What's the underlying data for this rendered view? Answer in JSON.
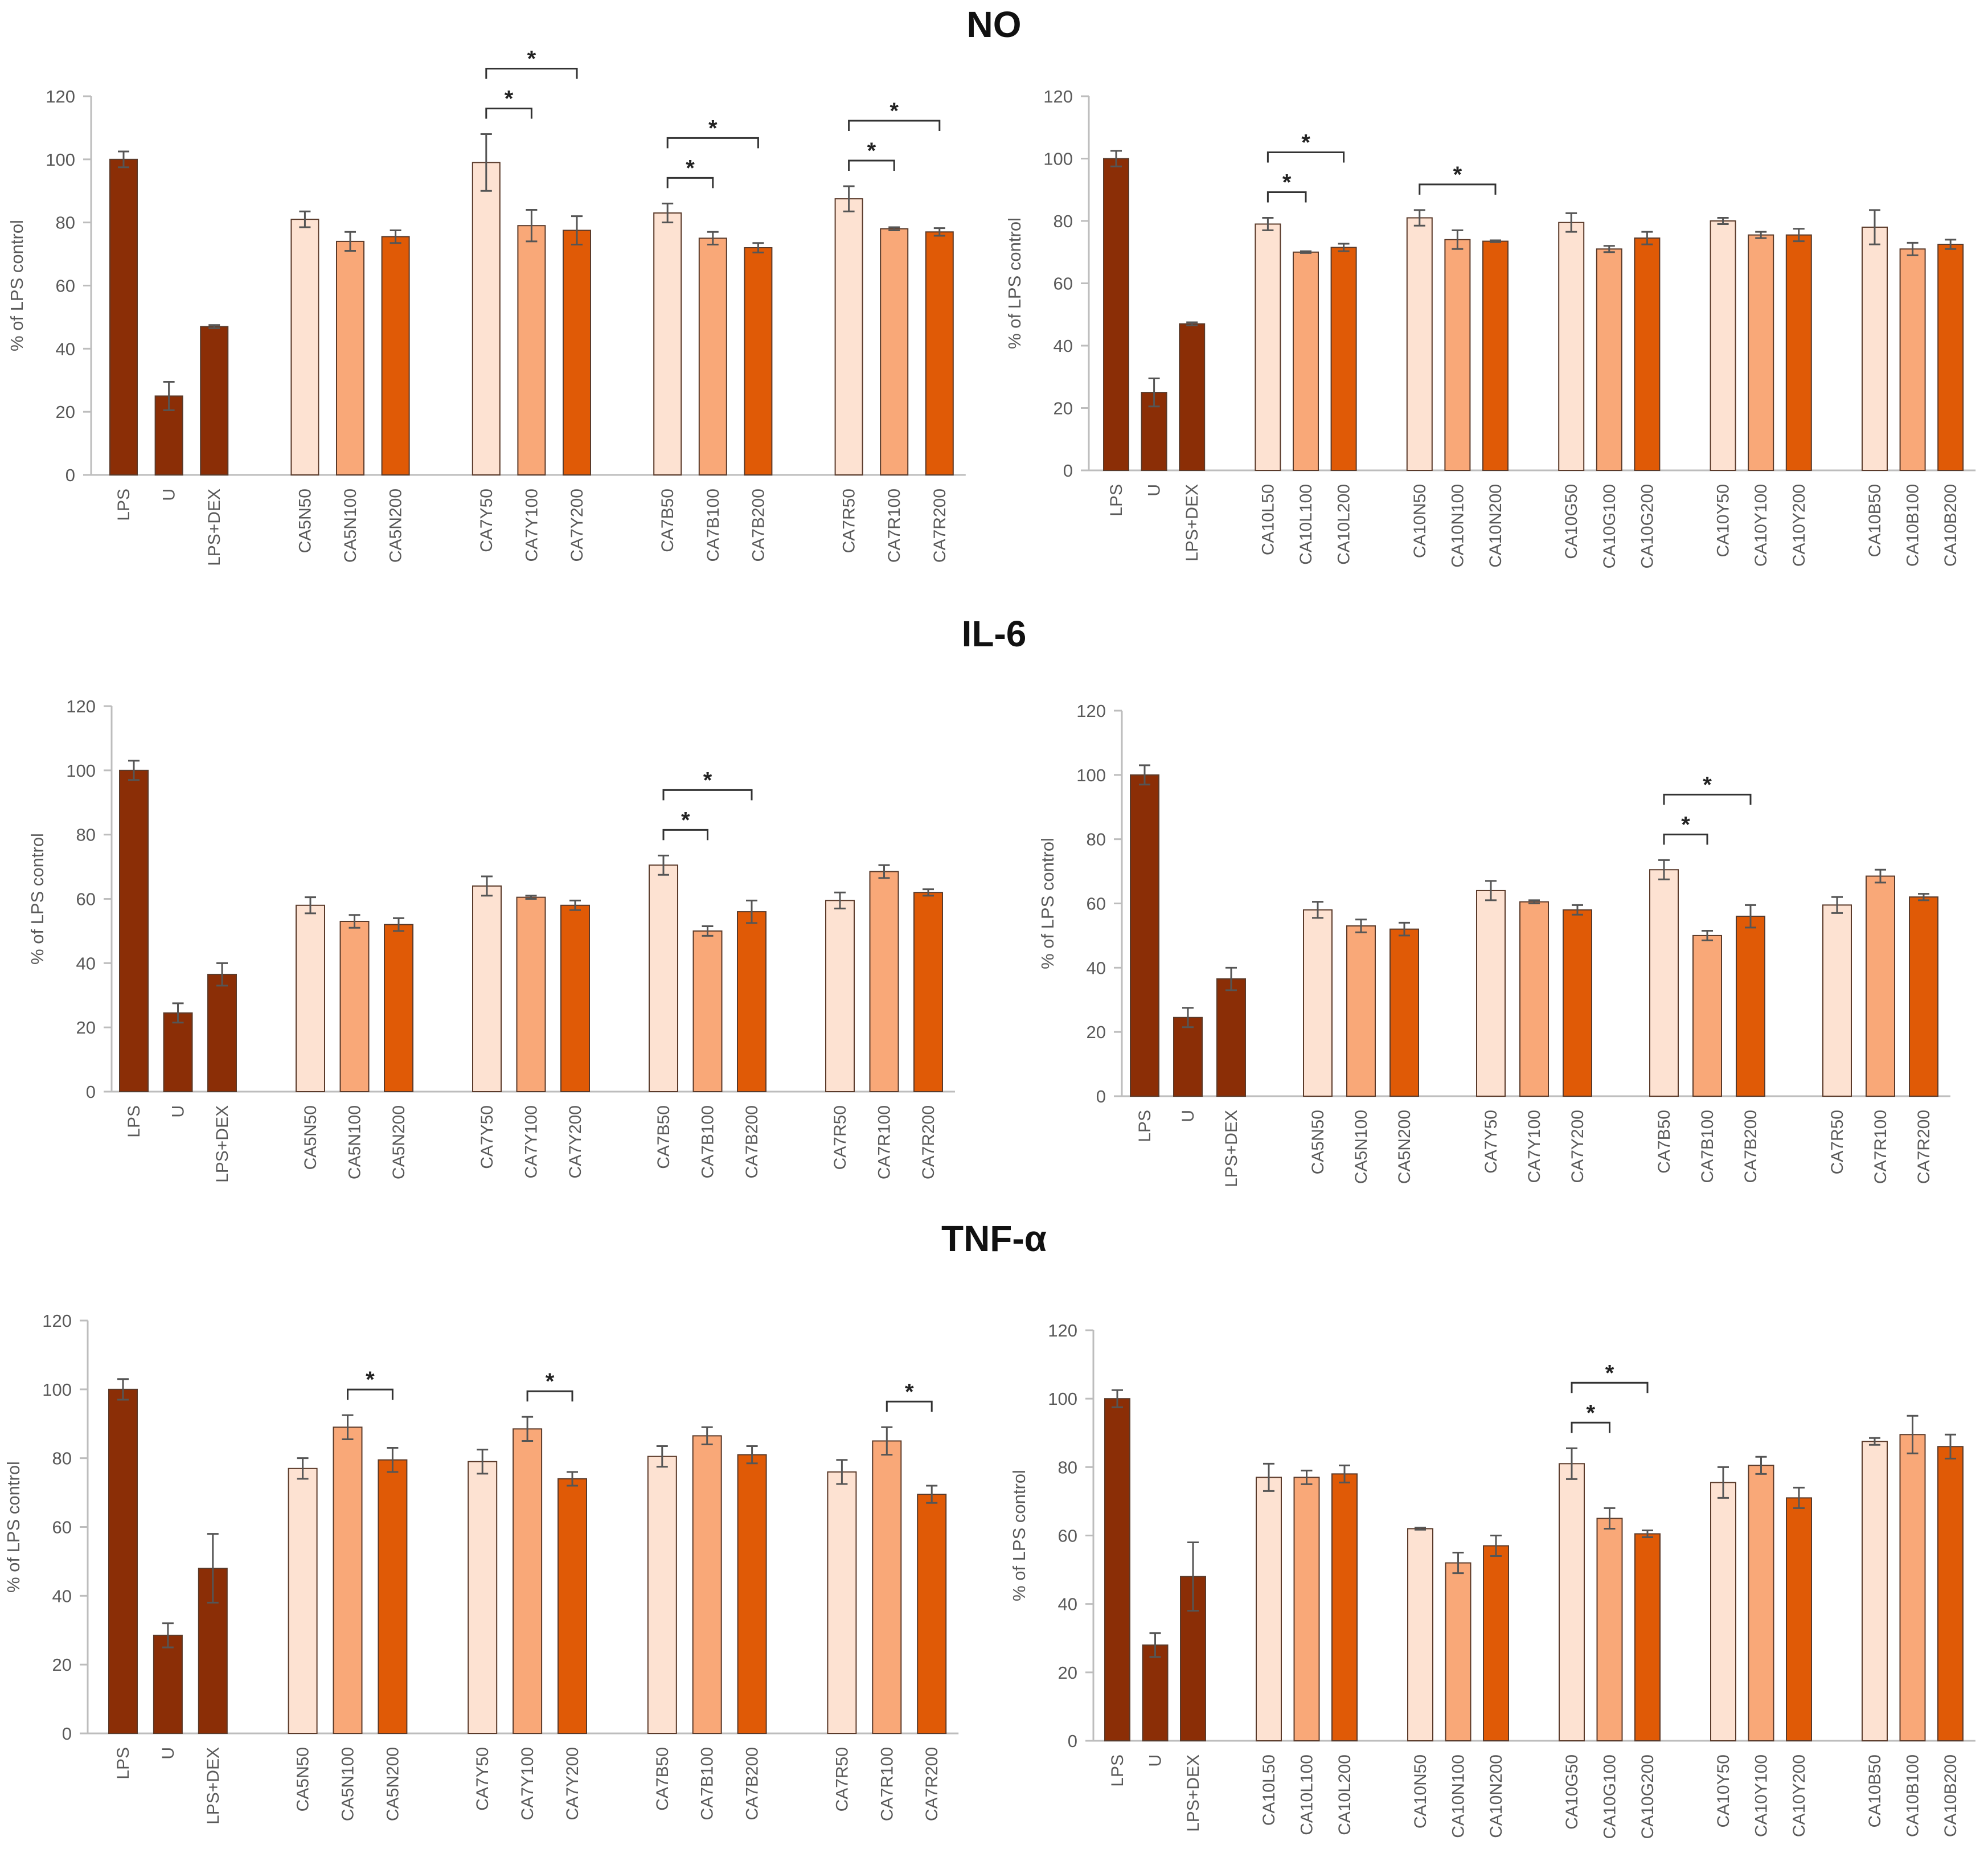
{
  "sections": [
    {
      "title": "NO"
    },
    {
      "title": "IL-6"
    },
    {
      "title": "TNF-α"
    }
  ],
  "colors": {
    "control": "#8B2E06",
    "light": "#FDE2D2",
    "mid": "#F9A878",
    "dark": "#E05A06"
  },
  "chart_data": [
    {
      "type": "bar",
      "section": "NO",
      "panel": "left",
      "ylabel": "% of LPS control",
      "ylim": [
        0,
        120
      ],
      "yticks": [
        "0",
        "20",
        "40",
        "60",
        "80",
        "100",
        "120"
      ],
      "categories": [
        "LPS",
        "U",
        "LPS+DEX",
        "CA5N50",
        "CA5N100",
        "CA5N200",
        "CA7Y50",
        "CA7Y100",
        "CA7Y200",
        "CA7B50",
        "CA7B100",
        "CA7B200",
        "CA7R50",
        "CA7R100",
        "CA7R200"
      ],
      "values": [
        100,
        25,
        47,
        81,
        74,
        75.5,
        99,
        79,
        77.5,
        83,
        75,
        72,
        87.5,
        78,
        77
      ],
      "errors": [
        2.5,
        4.5,
        0.5,
        2.5,
        3,
        2,
        9,
        5,
        4.5,
        3,
        2,
        1.5,
        4,
        0.5,
        1.2
      ],
      "significance": [
        {
          "from": 6,
          "to": 7,
          "label": "*"
        },
        {
          "from": 6,
          "to": 8,
          "label": "*"
        },
        {
          "from": 9,
          "to": 10,
          "label": "*"
        },
        {
          "from": 9,
          "to": 11,
          "label": "*"
        },
        {
          "from": 12,
          "to": 13,
          "label": "*"
        },
        {
          "from": 12,
          "to": 14,
          "label": "*"
        }
      ]
    },
    {
      "type": "bar",
      "section": "NO",
      "panel": "right",
      "ylabel": "% of LPS control",
      "ylim": [
        0,
        120
      ],
      "yticks": [
        "0",
        "20",
        "40",
        "60",
        "80",
        "100",
        "120"
      ],
      "categories": [
        "LPS",
        "U",
        "LPS+DEX",
        "CA10L50",
        "CA10L100",
        "CA10L200",
        "CA10N50",
        "CA10N100",
        "CA10N200",
        "CA10G50",
        "CA10G100",
        "CA10G200",
        "CA10Y50",
        "CA10Y100",
        "CA10Y200",
        "CA10B50",
        "CA10B100",
        "CA10B200"
      ],
      "values": [
        100,
        25,
        47,
        79,
        70,
        71.5,
        81,
        74,
        73.5,
        79.5,
        71,
        74.5,
        80,
        75.5,
        75.5,
        78,
        71,
        72.5
      ],
      "errors": [
        2.5,
        4.5,
        0.5,
        2,
        0.3,
        1.2,
        2.5,
        3,
        0.3,
        3,
        1,
        2,
        1,
        1,
        2,
        5.5,
        2,
        1.5
      ],
      "significance": [
        {
          "from": 3,
          "to": 4,
          "label": "*"
        },
        {
          "from": 3,
          "to": 5,
          "label": "*"
        },
        {
          "from": 6,
          "to": 8,
          "label": "*"
        }
      ]
    },
    {
      "type": "bar",
      "section": "IL-6",
      "panel": "left",
      "ylabel": "% of LPS control",
      "ylim": [
        0,
        120
      ],
      "yticks": [
        "0",
        "20",
        "40",
        "60",
        "80",
        "100",
        "120"
      ],
      "categories": [
        "LPS",
        "U",
        "LPS+DEX",
        "CA5N50",
        "CA5N100",
        "CA5N200",
        "CA7Y50",
        "CA7Y100",
        "CA7Y200",
        "CA7B50",
        "CA7B100",
        "CA7B200",
        "CA7R50",
        "CA7R100",
        "CA7R200"
      ],
      "values": [
        100,
        24.5,
        36.5,
        58,
        53,
        52,
        64,
        60.5,
        58,
        70.5,
        50,
        56,
        59.5,
        68.5,
        62
      ],
      "errors": [
        3,
        3,
        3.5,
        2.5,
        2,
        2,
        3,
        0.5,
        1.5,
        3,
        1.5,
        3.5,
        2.5,
        2,
        1
      ],
      "significance": [
        {
          "from": 9,
          "to": 10,
          "label": "*"
        },
        {
          "from": 9,
          "to": 11,
          "label": "*"
        }
      ]
    },
    {
      "type": "bar",
      "section": "IL-6",
      "panel": "right",
      "ylabel": "% of LPS control",
      "ylim": [
        0,
        120
      ],
      "yticks": [
        "0",
        "20",
        "40",
        "60",
        "80",
        "100",
        "120"
      ],
      "categories": [
        "LPS",
        "U",
        "LPS+DEX",
        "CA5N50",
        "CA5N100",
        "CA5N200",
        "CA7Y50",
        "CA7Y100",
        "CA7Y200",
        "CA7B50",
        "CA7B100",
        "CA7B200",
        "CA7R50",
        "CA7R100",
        "CA7R200"
      ],
      "values": [
        100,
        24.5,
        36.5,
        58,
        53,
        52,
        64,
        60.5,
        58,
        70.5,
        50,
        56,
        59.5,
        68.5,
        62
      ],
      "errors": [
        3,
        3,
        3.5,
        2.5,
        2,
        2,
        3,
        0.5,
        1.5,
        3,
        1.5,
        3.5,
        2.5,
        2,
        1
      ],
      "significance": [
        {
          "from": 9,
          "to": 10,
          "label": "*"
        },
        {
          "from": 9,
          "to": 11,
          "label": "*"
        }
      ]
    },
    {
      "type": "bar",
      "section": "TNF-α",
      "panel": "left",
      "ylabel": "% of LPS control",
      "ylim": [
        0,
        120
      ],
      "yticks": [
        "0",
        "20",
        "40",
        "60",
        "80",
        "100",
        "120"
      ],
      "categories": [
        "LPS",
        "U",
        "LPS+DEX",
        "CA5N50",
        "CA5N100",
        "CA5N200",
        "CA7Y50",
        "CA7Y100",
        "CA7Y200",
        "CA7B50",
        "CA7B100",
        "CA7B200",
        "CA7R50",
        "CA7R100",
        "CA7R200"
      ],
      "values": [
        100,
        28.5,
        48,
        77,
        89,
        79.5,
        79,
        88.5,
        74,
        80.5,
        86.5,
        81,
        76,
        85,
        69.5
      ],
      "errors": [
        3,
        3.5,
        10,
        3,
        3.5,
        3.5,
        3.5,
        3.5,
        2,
        3,
        2.5,
        2.5,
        3.5,
        4,
        2.5
      ],
      "significance": [
        {
          "from": 4,
          "to": 5,
          "label": "*"
        },
        {
          "from": 7,
          "to": 8,
          "label": "*"
        },
        {
          "from": 13,
          "to": 14,
          "label": "*"
        }
      ]
    },
    {
      "type": "bar",
      "section": "TNF-α",
      "panel": "right",
      "ylabel": "% of LPS control",
      "ylim": [
        0,
        120
      ],
      "yticks": [
        "0",
        "20",
        "40",
        "60",
        "80",
        "100",
        "120"
      ],
      "categories": [
        "LPS",
        "U",
        "LPS+DEX",
        "CA10L50",
        "CA10L100",
        "CA10L200",
        "CA10N50",
        "CA10N100",
        "CA10N200",
        "CA10G50",
        "CA10G100",
        "CA10G200",
        "CA10Y50",
        "CA10Y100",
        "CA10Y200",
        "CA10B50",
        "CA10B100",
        "CA10B200"
      ],
      "values": [
        100,
        28,
        48,
        77,
        77,
        78,
        62,
        52,
        57,
        81,
        65,
        60.5,
        75.5,
        80.5,
        71,
        87.5,
        89.5,
        86
      ],
      "errors": [
        2.5,
        3.5,
        10,
        4,
        2,
        2.5,
        0.3,
        3,
        3,
        4.5,
        3,
        1,
        4.5,
        2.5,
        3,
        1,
        5.5,
        3.5
      ],
      "significance": [
        {
          "from": 9,
          "to": 10,
          "label": "*"
        },
        {
          "from": 9,
          "to": 11,
          "label": "*"
        }
      ]
    }
  ]
}
